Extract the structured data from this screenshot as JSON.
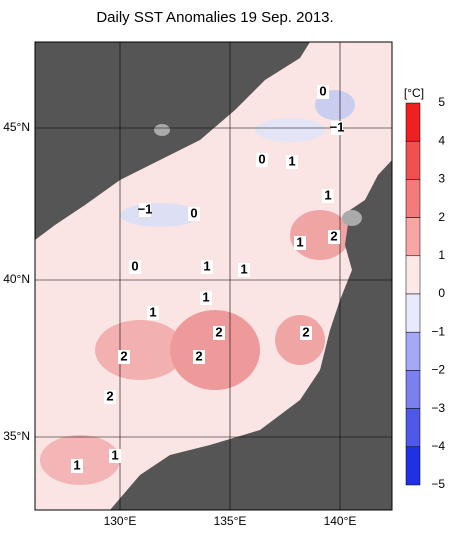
{
  "title": "Daily SST Anomalies 19 Sep. 2013.",
  "unit": "[°C]",
  "lat_labels": [
    "45°N",
    "40°N",
    "35°N"
  ],
  "lon_labels": [
    "130°E",
    "135°E",
    "140°E"
  ],
  "colorbar_labels": [
    "5",
    "4",
    "3",
    "2",
    "1",
    "0",
    "−1",
    "−2",
    "−3",
    "−4",
    "−5"
  ],
  "contour_labels": [
    "0",
    "−1",
    "0",
    "1",
    "−1",
    "0",
    "1",
    "2",
    "1",
    "0",
    "1",
    "1",
    "1",
    "2",
    "2",
    "2",
    "2",
    "2",
    "1",
    "1",
    "1"
  ]
}
